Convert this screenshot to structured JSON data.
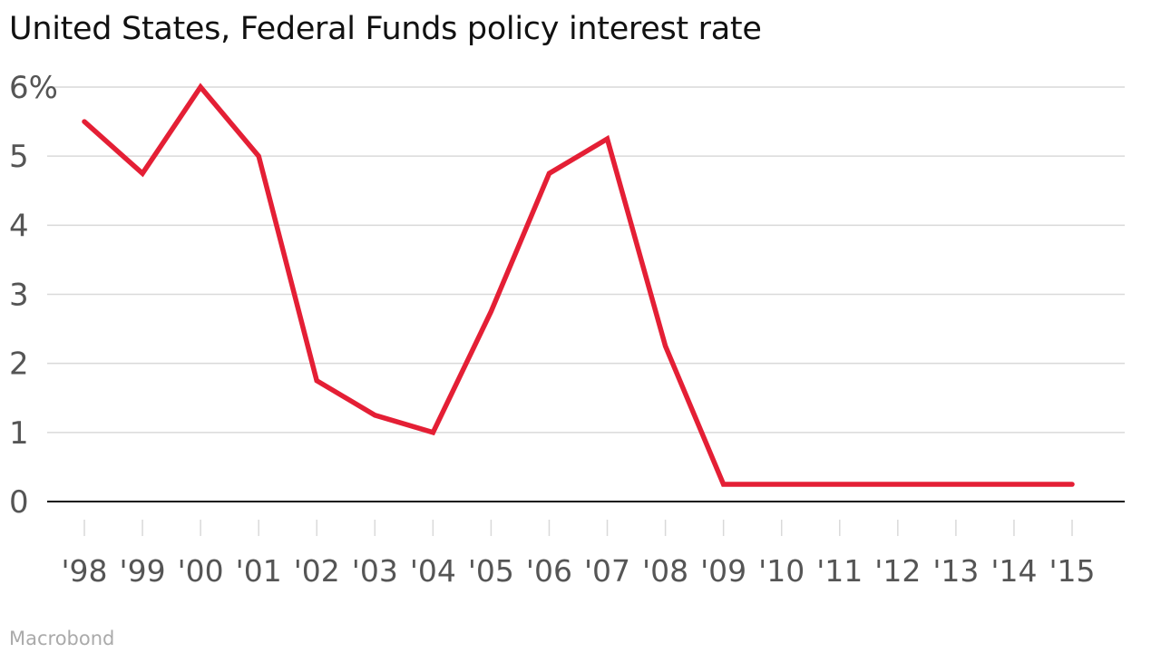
{
  "title": "United States, Federal Funds policy interest rate",
  "source": "Macrobond",
  "colors": {
    "line": "#e41f35",
    "grid": "#d9d9d9",
    "axis": "#111111",
    "tick_text": "#555555"
  },
  "chart_data": {
    "type": "line",
    "title": "United States, Federal Funds policy interest rate",
    "xlabel": "",
    "ylabel": "",
    "categories": [
      "'98",
      "'99",
      "'00",
      "'01",
      "'02",
      "'03",
      "'04",
      "'05",
      "'06",
      "'07",
      "'08",
      "'09",
      "'10",
      "'11",
      "'12",
      "'13",
      "'14",
      "'15"
    ],
    "series": [
      {
        "values": [
          5.5,
          4.75,
          6.0,
          5.0,
          1.75,
          1.25,
          1.0,
          2.75,
          4.75,
          5.25,
          2.25,
          0.25,
          0.25,
          0.25,
          0.25,
          0.25,
          0.25,
          0.25
        ]
      }
    ],
    "ylim": [
      0,
      6
    ],
    "yticks": [
      0,
      1,
      2,
      3,
      4,
      5,
      6
    ],
    "ytick_labels": [
      "0",
      "1",
      "2",
      "3",
      "4",
      "5",
      "6%"
    ],
    "grid": true,
    "legend": "none"
  }
}
